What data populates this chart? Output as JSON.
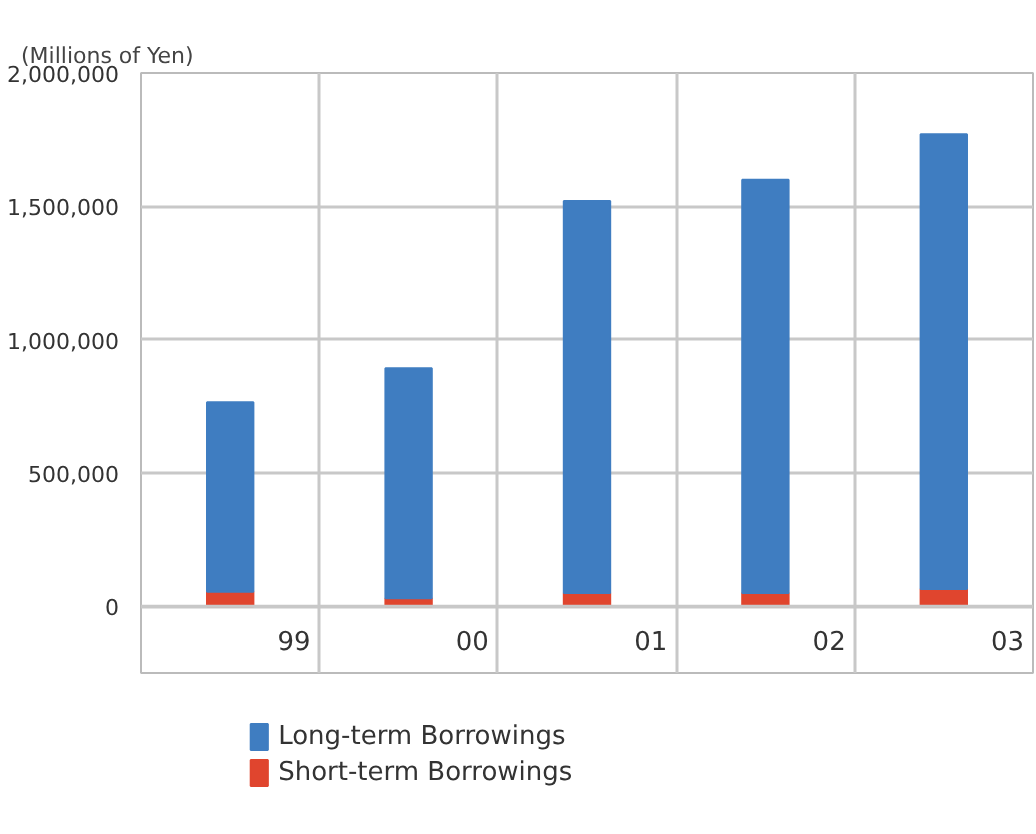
{
  "chart_data": {
    "type": "bar",
    "ylabel": "(Millions of Yen)",
    "stacked": true,
    "categories": [
      "99",
      "00",
      "01",
      "02",
      "03"
    ],
    "series": [
      {
        "name": "Short-term Borrowings",
        "color": "#e0452e",
        "values": [
          55000,
          30000,
          50000,
          50000,
          65000
        ]
      },
      {
        "name": "Long-term Borrowings",
        "color": "#3f7dc1",
        "values": [
          710000,
          863000,
          1470000,
          1550000,
          1705000
        ]
      }
    ],
    "ylim": [
      -250000,
      2000000
    ],
    "yticks": [
      {
        "value": 0,
        "label": "0"
      },
      {
        "value": 500000,
        "label": "500,000"
      },
      {
        "value": 1000000,
        "label": "1,000,000"
      },
      {
        "value": 1500000,
        "label": "1,500,000"
      },
      {
        "value": 2000000,
        "label": "2,000,000"
      }
    ],
    "grid": true,
    "legend": "bottom"
  }
}
